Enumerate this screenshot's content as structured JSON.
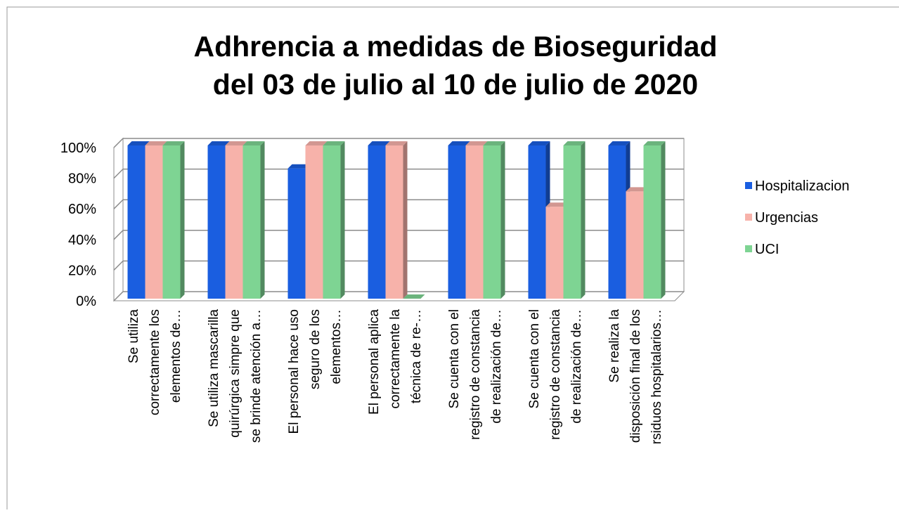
{
  "chart_data": {
    "type": "bar3d",
    "title": [
      "Adhrencia a medidas de Bioseguridad",
      "del 03 de julio al 10 de julio de 2020"
    ],
    "categories": [
      [
        "Se utiliza",
        "correctamente los",
        "elementos de…"
      ],
      [
        "Se utiliza mascarilla",
        "quirúrgica simpre que",
        "se brinde atención a…"
      ],
      [
        "El personal hace uso",
        "seguro de los",
        "elementos…"
      ],
      [
        "El personal aplica",
        "correctamente la",
        "técnica de re-…"
      ],
      [
        "Se cuenta con el",
        "registro de constancia",
        "de realización de…"
      ],
      [
        "Se cuenta con el",
        "registro de constancia",
        "de realización de…"
      ],
      [
        "Se realiza la",
        "disposición final de los",
        "rsiduos hospitalarios…"
      ]
    ],
    "series": [
      {
        "name": "Hospitalizacion",
        "color": "#1a5ee0",
        "values": [
          100,
          100,
          85,
          100,
          100,
          100,
          100
        ]
      },
      {
        "name": "Urgencias",
        "color": "#f7b2aa",
        "values": [
          100,
          100,
          100,
          100,
          100,
          60,
          70
        ]
      },
      {
        "name": "UCI",
        "color": "#7ed493",
        "values": [
          100,
          100,
          100,
          0,
          100,
          100,
          100
        ]
      }
    ],
    "ylim": [
      0,
      100
    ],
    "yticks": [
      {
        "value": 0,
        "label": "0%"
      },
      {
        "value": 20,
        "label": "20%"
      },
      {
        "value": 40,
        "label": "40%"
      },
      {
        "value": 60,
        "label": "60%"
      },
      {
        "value": 80,
        "label": "80%"
      },
      {
        "value": 100,
        "label": "100%"
      }
    ],
    "grid": true,
    "legend": "right"
  }
}
